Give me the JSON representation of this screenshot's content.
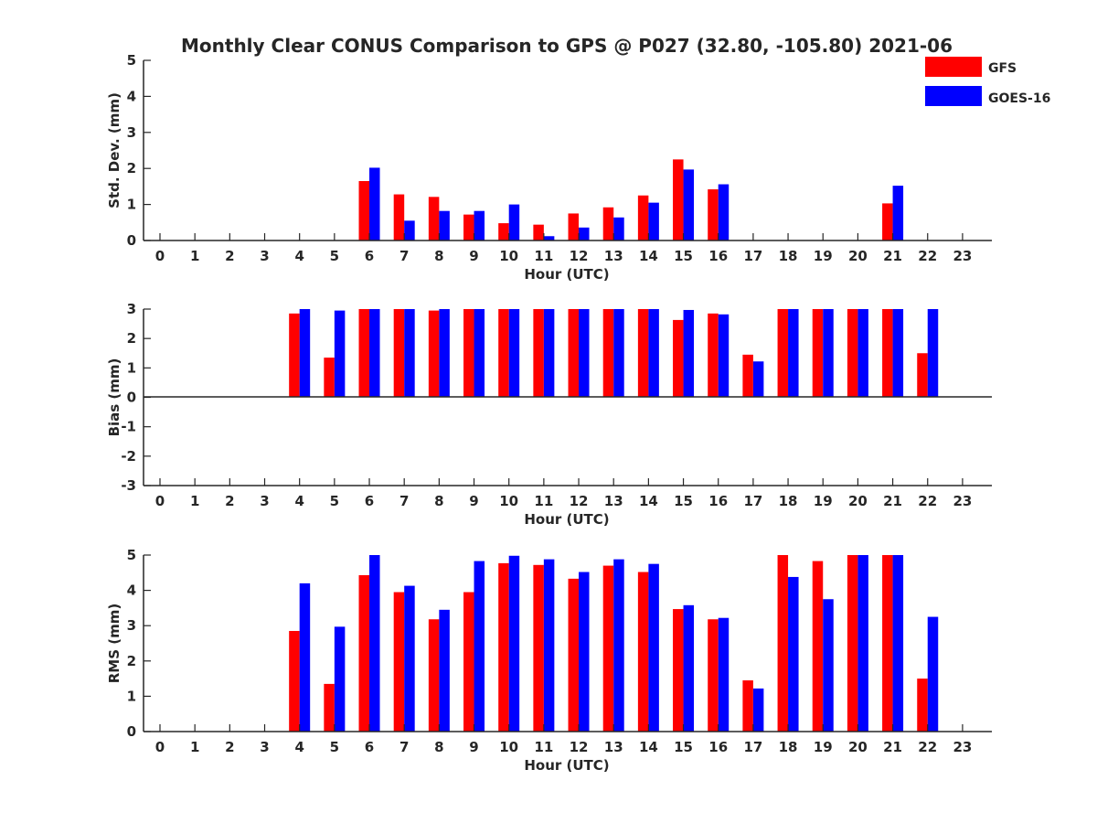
{
  "title": "Monthly Clear CONUS Comparison to GPS @ P027 (32.80, -105.80) 2021-06",
  "colors": {
    "GFS": "#ff0000",
    "GOES-16": "#0000ff",
    "axis": "#262626"
  },
  "legend": {
    "placement": "top-right",
    "entries": [
      "GFS",
      "GOES-16"
    ]
  },
  "chart_data": [
    {
      "type": "bar",
      "xlabel": "Hour (UTC)",
      "ylabel": "Std. Dev. (mm)",
      "ylim": [
        0,
        5
      ],
      "yticks": [
        "0",
        "1",
        "2",
        "3",
        "4",
        "5"
      ],
      "categories": [
        "0",
        "1",
        "2",
        "3",
        "4",
        "5",
        "6",
        "7",
        "8",
        "9",
        "10",
        "11",
        "12",
        "13",
        "14",
        "15",
        "16",
        "17",
        "18",
        "19",
        "20",
        "21",
        "22",
        "23"
      ],
      "series": [
        {
          "name": "GFS",
          "values": [
            null,
            null,
            null,
            null,
            null,
            null,
            1.65,
            1.28,
            1.21,
            0.72,
            0.48,
            0.44,
            0.75,
            0.92,
            1.25,
            2.25,
            1.42,
            null,
            null,
            null,
            null,
            1.03,
            null,
            null
          ]
        },
        {
          "name": "GOES-16",
          "values": [
            null,
            null,
            null,
            null,
            null,
            null,
            2.02,
            0.55,
            0.82,
            0.82,
            1.0,
            0.12,
            0.36,
            0.64,
            1.05,
            1.97,
            1.56,
            null,
            null,
            null,
            null,
            1.52,
            null,
            null
          ]
        }
      ],
      "grid": false
    },
    {
      "type": "bar",
      "xlabel": "Hour (UTC)",
      "ylabel": "Bias (mm)",
      "ylim": [
        -3,
        3
      ],
      "yticks": [
        "-3",
        "-2",
        "-1",
        "0",
        "1",
        "2",
        "3"
      ],
      "categories": [
        "0",
        "1",
        "2",
        "3",
        "4",
        "5",
        "6",
        "7",
        "8",
        "9",
        "10",
        "11",
        "12",
        "13",
        "14",
        "15",
        "16",
        "17",
        "18",
        "19",
        "20",
        "21",
        "22",
        "23"
      ],
      "series": [
        {
          "name": "GFS",
          "values": [
            null,
            null,
            null,
            null,
            2.85,
            1.35,
            3.0,
            3.0,
            2.95,
            3.0,
            3.0,
            3.0,
            3.0,
            3.0,
            3.0,
            2.63,
            2.85,
            1.45,
            3.0,
            3.0,
            3.0,
            3.0,
            1.5,
            null
          ]
        },
        {
          "name": "GOES-16",
          "values": [
            null,
            null,
            null,
            null,
            3.0,
            2.95,
            3.0,
            3.0,
            3.0,
            3.0,
            3.0,
            3.0,
            3.0,
            3.0,
            3.0,
            2.97,
            2.82,
            1.22,
            3.0,
            3.0,
            3.0,
            3.0,
            3.0,
            null
          ]
        }
      ],
      "grid": false
    },
    {
      "type": "bar",
      "xlabel": "Hour (UTC)",
      "ylabel": "RMS (mm)",
      "ylim": [
        0,
        5
      ],
      "yticks": [
        "0",
        "1",
        "2",
        "3",
        "4",
        "5"
      ],
      "categories": [
        "0",
        "1",
        "2",
        "3",
        "4",
        "5",
        "6",
        "7",
        "8",
        "9",
        "10",
        "11",
        "12",
        "13",
        "14",
        "15",
        "16",
        "17",
        "18",
        "19",
        "20",
        "21",
        "22",
        "23"
      ],
      "series": [
        {
          "name": "GFS",
          "values": [
            null,
            null,
            null,
            null,
            2.85,
            1.35,
            4.43,
            3.95,
            3.18,
            3.95,
            4.77,
            4.72,
            4.33,
            4.7,
            4.52,
            3.47,
            3.18,
            1.45,
            5.0,
            4.83,
            5.0,
            5.0,
            1.5,
            null
          ]
        },
        {
          "name": "GOES-16",
          "values": [
            null,
            null,
            null,
            null,
            4.2,
            2.97,
            5.0,
            4.13,
            3.45,
            4.83,
            4.98,
            4.88,
            4.52,
            4.88,
            4.75,
            3.58,
            3.22,
            1.22,
            4.38,
            3.75,
            5.0,
            5.0,
            3.25,
            null
          ]
        }
      ],
      "grid": false
    }
  ]
}
